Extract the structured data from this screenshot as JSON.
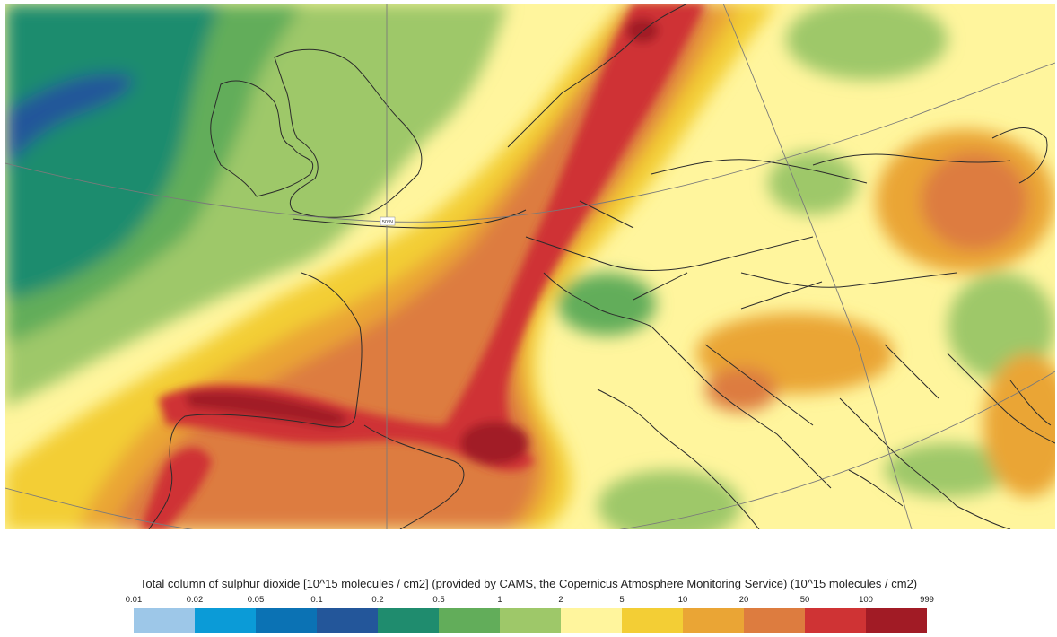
{
  "map": {
    "graticule_label": "50°N"
  },
  "legend": {
    "title": "Total column of sulphur dioxide [10^15 molecules / cm2] (provided by CAMS, the Copernicus Atmosphere Monitoring Service) (10^15 molecules / cm2)",
    "ticks": [
      "0.01",
      "0.02",
      "0.05",
      "0.1",
      "0.2",
      "0.5",
      "1",
      "2",
      "5",
      "10",
      "20",
      "50",
      "100",
      "999"
    ],
    "colors": [
      "#9dc7e8",
      "#0b9bd7",
      "#0b72b4",
      "#23569a",
      "#1f8c6e",
      "#62ad5a",
      "#9ec869",
      "#fff59d",
      "#f3ce35",
      "#eaa535",
      "#dd7c3f",
      "#cf3334",
      "#a11b25"
    ]
  }
}
